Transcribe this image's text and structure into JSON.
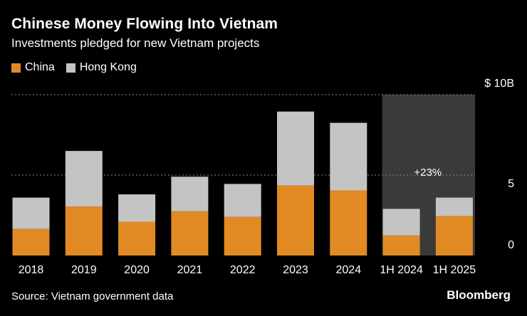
{
  "chart_data": {
    "type": "bar",
    "stacked": true,
    "title": "Chinese Money Flowing Into Vietnam",
    "subtitle": "Investments pledged for new Vietnam projects",
    "categories": [
      "2018",
      "2019",
      "2020",
      "2021",
      "2022",
      "2023",
      "2024",
      "1H 2024",
      "1H 2025"
    ],
    "series": [
      {
        "name": "China",
        "color": "#e28a24",
        "values": [
          1.65,
          3.05,
          2.1,
          2.75,
          2.4,
          4.35,
          4.05,
          1.25,
          2.45
        ]
      },
      {
        "name": "Hong Kong",
        "color": "#c4c4c4",
        "values": [
          1.95,
          3.45,
          1.7,
          2.15,
          2.05,
          4.6,
          4.2,
          1.65,
          1.15
        ]
      }
    ],
    "ylim": [
      0,
      10
    ],
    "yticks": [
      {
        "value": 0,
        "label": "0"
      },
      {
        "value": 5,
        "label": "5"
      },
      {
        "value": 10,
        "label": "$ 10B"
      }
    ],
    "xlabel": "",
    "ylabel": "",
    "highlight": {
      "from": "1H 2024",
      "to": "1H 2025",
      "color": "#3a3a3a"
    },
    "annotations": [
      {
        "text": "+23%"
      }
    ],
    "grid": true,
    "legend": "top-left"
  },
  "footer": {
    "source": "Source: Vietnam government data",
    "brand": "Bloomberg"
  }
}
